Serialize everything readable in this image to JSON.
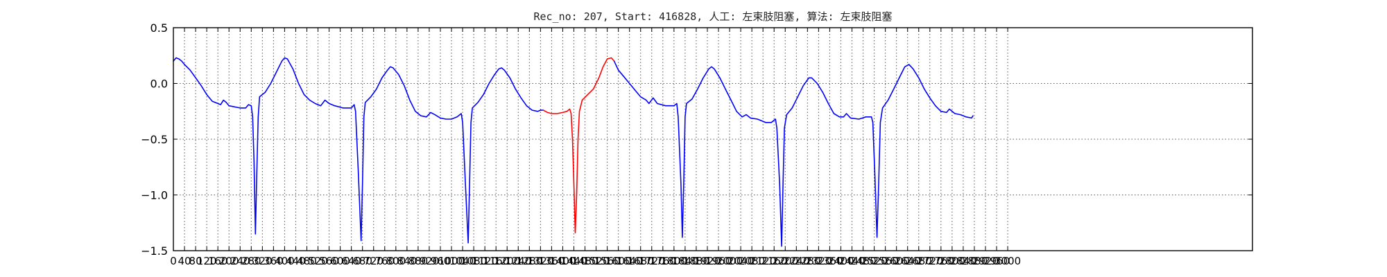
{
  "chart_data": {
    "type": "line",
    "title": "Rec_no: 207, Start: 416828, 人工: 左束肢阻塞, 算法: 左束肢阻塞",
    "xlabel": "",
    "ylabel": "",
    "xlim": [
      0,
      3880
    ],
    "ylim": [
      -1.5,
      0.5
    ],
    "grid": true,
    "yticks": [
      -1.5,
      -1.0,
      -0.5,
      0.0,
      0.5
    ],
    "ytick_labels": [
      "−1.5",
      "−1.0",
      "−0.5",
      "0.0",
      "0.5"
    ],
    "xticks": [
      0,
      40,
      80,
      120,
      160,
      200,
      240,
      280,
      320,
      360,
      400,
      440,
      480,
      520,
      560,
      600,
      640,
      680,
      720,
      760,
      800,
      840,
      880,
      920,
      960,
      1000,
      1040,
      1080,
      1120,
      1160,
      1200,
      1240,
      1280,
      1320,
      1360,
      1400,
      1440,
      1480,
      1520,
      1560,
      1600,
      1640,
      1680,
      1720,
      1760,
      1800,
      1840,
      1880,
      1920,
      1960,
      2000,
      2040,
      2080,
      2120,
      2160,
      2200,
      2240,
      2280,
      2320,
      2360,
      2400,
      2440,
      2480,
      2520,
      2560,
      2600,
      2640,
      2680,
      2720,
      2760,
      2800,
      2840,
      2880,
      2920,
      2960,
      3000
    ],
    "series": [
      {
        "color": "#0000ff",
        "points": [
          [
            0,
            0.2
          ],
          [
            10,
            0.23
          ],
          [
            20,
            0.22
          ],
          [
            30,
            0.2
          ],
          [
            40,
            0.17
          ],
          [
            60,
            0.12
          ],
          [
            80,
            0.05
          ],
          [
            100,
            -0.02
          ],
          [
            120,
            -0.1
          ],
          [
            140,
            -0.16
          ],
          [
            160,
            -0.18
          ],
          [
            170,
            -0.19
          ],
          [
            180,
            -0.15
          ],
          [
            190,
            -0.17
          ],
          [
            200,
            -0.2
          ],
          [
            220,
            -0.21
          ],
          [
            240,
            -0.22
          ],
          [
            260,
            -0.22
          ],
          [
            270,
            -0.19
          ],
          [
            280,
            -0.2
          ],
          [
            285,
            -0.3
          ],
          [
            290,
            -0.7
          ],
          [
            295,
            -1.35
          ],
          [
            300,
            -0.8
          ],
          [
            305,
            -0.3
          ],
          [
            310,
            -0.12
          ],
          [
            330,
            -0.08
          ],
          [
            350,
            0.0
          ],
          [
            370,
            0.1
          ],
          [
            390,
            0.2
          ],
          [
            400,
            0.23
          ],
          [
            410,
            0.22
          ],
          [
            430,
            0.13
          ],
          [
            450,
            0.0
          ],
          [
            470,
            -0.1
          ],
          [
            490,
            -0.15
          ],
          [
            510,
            -0.18
          ],
          [
            530,
            -0.2
          ],
          [
            545,
            -0.15
          ],
          [
            560,
            -0.18
          ],
          [
            580,
            -0.2
          ],
          [
            610,
            -0.22
          ],
          [
            640,
            -0.22
          ],
          [
            650,
            -0.19
          ],
          [
            655,
            -0.25
          ],
          [
            665,
            -0.8
          ],
          [
            675,
            -1.41
          ],
          [
            680,
            -0.9
          ],
          [
            685,
            -0.3
          ],
          [
            690,
            -0.17
          ],
          [
            710,
            -0.12
          ],
          [
            730,
            -0.05
          ],
          [
            750,
            0.05
          ],
          [
            770,
            0.12
          ],
          [
            780,
            0.15
          ],
          [
            790,
            0.14
          ],
          [
            810,
            0.08
          ],
          [
            830,
            -0.02
          ],
          [
            850,
            -0.15
          ],
          [
            870,
            -0.25
          ],
          [
            890,
            -0.29
          ],
          [
            910,
            -0.3
          ],
          [
            925,
            -0.26
          ],
          [
            940,
            -0.28
          ],
          [
            960,
            -0.31
          ],
          [
            980,
            -0.32
          ],
          [
            1000,
            -0.32
          ],
          [
            1020,
            -0.3
          ],
          [
            1035,
            -0.27
          ],
          [
            1040,
            -0.35
          ],
          [
            1050,
            -0.9
          ],
          [
            1060,
            -1.43
          ],
          [
            1065,
            -0.9
          ],
          [
            1070,
            -0.35
          ],
          [
            1075,
            -0.22
          ],
          [
            1095,
            -0.17
          ],
          [
            1115,
            -0.1
          ],
          [
            1135,
            0.0
          ],
          [
            1155,
            0.08
          ],
          [
            1170,
            0.13
          ],
          [
            1180,
            0.14
          ],
          [
            1190,
            0.12
          ],
          [
            1210,
            0.05
          ],
          [
            1230,
            -0.05
          ],
          [
            1250,
            -0.13
          ],
          [
            1270,
            -0.2
          ],
          [
            1290,
            -0.24
          ],
          [
            1310,
            -0.25
          ],
          [
            1320,
            -0.24
          ],
          [
            1330,
            -0.24
          ]
        ]
      },
      {
        "color": "#ff0000",
        "points": [
          [
            1330,
            -0.24
          ],
          [
            1345,
            -0.26
          ],
          [
            1360,
            -0.27
          ],
          [
            1380,
            -0.27
          ],
          [
            1400,
            -0.26
          ],
          [
            1415,
            -0.25
          ],
          [
            1425,
            -0.23
          ],
          [
            1430,
            -0.27
          ],
          [
            1435,
            -0.5
          ],
          [
            1440,
            -0.9
          ],
          [
            1445,
            -1.34
          ],
          [
            1450,
            -1.0
          ],
          [
            1455,
            -0.5
          ],
          [
            1460,
            -0.25
          ],
          [
            1470,
            -0.15
          ],
          [
            1490,
            -0.1
          ],
          [
            1510,
            -0.05
          ],
          [
            1530,
            0.05
          ],
          [
            1545,
            0.15
          ],
          [
            1560,
            0.22
          ],
          [
            1575,
            0.23
          ],
          [
            1585,
            0.2
          ]
        ]
      },
      {
        "color": "#0000ff",
        "points": [
          [
            1585,
            0.2
          ],
          [
            1600,
            0.12
          ],
          [
            1620,
            0.06
          ],
          [
            1640,
            0.0
          ],
          [
            1660,
            -0.06
          ],
          [
            1680,
            -0.12
          ],
          [
            1700,
            -0.15
          ],
          [
            1710,
            -0.18
          ],
          [
            1725,
            -0.13
          ],
          [
            1740,
            -0.18
          ],
          [
            1770,
            -0.2
          ],
          [
            1800,
            -0.2
          ],
          [
            1810,
            -0.18
          ],
          [
            1815,
            -0.3
          ],
          [
            1825,
            -0.9
          ],
          [
            1830,
            -1.38
          ],
          [
            1835,
            -0.9
          ],
          [
            1840,
            -0.3
          ],
          [
            1845,
            -0.18
          ],
          [
            1865,
            -0.14
          ],
          [
            1885,
            -0.05
          ],
          [
            1905,
            0.05
          ],
          [
            1925,
            0.13
          ],
          [
            1935,
            0.15
          ],
          [
            1945,
            0.13
          ],
          [
            1965,
            0.05
          ],
          [
            1985,
            -0.05
          ],
          [
            2005,
            -0.15
          ],
          [
            2025,
            -0.25
          ],
          [
            2045,
            -0.3
          ],
          [
            2060,
            -0.28
          ],
          [
            2075,
            -0.31
          ],
          [
            2100,
            -0.32
          ],
          [
            2130,
            -0.35
          ],
          [
            2150,
            -0.35
          ],
          [
            2165,
            -0.32
          ],
          [
            2170,
            -0.4
          ],
          [
            2180,
            -0.9
          ],
          [
            2187,
            -1.46
          ],
          [
            2192,
            -0.9
          ],
          [
            2197,
            -0.4
          ],
          [
            2205,
            -0.28
          ],
          [
            2225,
            -0.22
          ],
          [
            2245,
            -0.12
          ],
          [
            2265,
            -0.02
          ],
          [
            2285,
            0.05
          ],
          [
            2295,
            0.05
          ],
          [
            2315,
            0.0
          ],
          [
            2335,
            -0.08
          ],
          [
            2355,
            -0.18
          ],
          [
            2375,
            -0.27
          ],
          [
            2395,
            -0.3
          ],
          [
            2410,
            -0.3
          ],
          [
            2420,
            -0.27
          ],
          [
            2435,
            -0.31
          ],
          [
            2465,
            -0.32
          ],
          [
            2490,
            -0.3
          ],
          [
            2510,
            -0.3
          ],
          [
            2515,
            -0.35
          ],
          [
            2522,
            -0.8
          ],
          [
            2530,
            -1.38
          ],
          [
            2536,
            -0.9
          ],
          [
            2542,
            -0.35
          ],
          [
            2550,
            -0.22
          ],
          [
            2570,
            -0.15
          ],
          [
            2590,
            -0.05
          ],
          [
            2610,
            0.05
          ],
          [
            2630,
            0.15
          ],
          [
            2645,
            0.17
          ],
          [
            2660,
            0.13
          ],
          [
            2680,
            0.05
          ],
          [
            2700,
            -0.05
          ],
          [
            2720,
            -0.13
          ],
          [
            2740,
            -0.2
          ],
          [
            2760,
            -0.25
          ],
          [
            2780,
            -0.26
          ],
          [
            2790,
            -0.23
          ],
          [
            2810,
            -0.27
          ],
          [
            2830,
            -0.28
          ],
          [
            2850,
            -0.3
          ],
          [
            2870,
            -0.31
          ],
          [
            2875,
            -0.29
          ]
        ]
      }
    ]
  }
}
